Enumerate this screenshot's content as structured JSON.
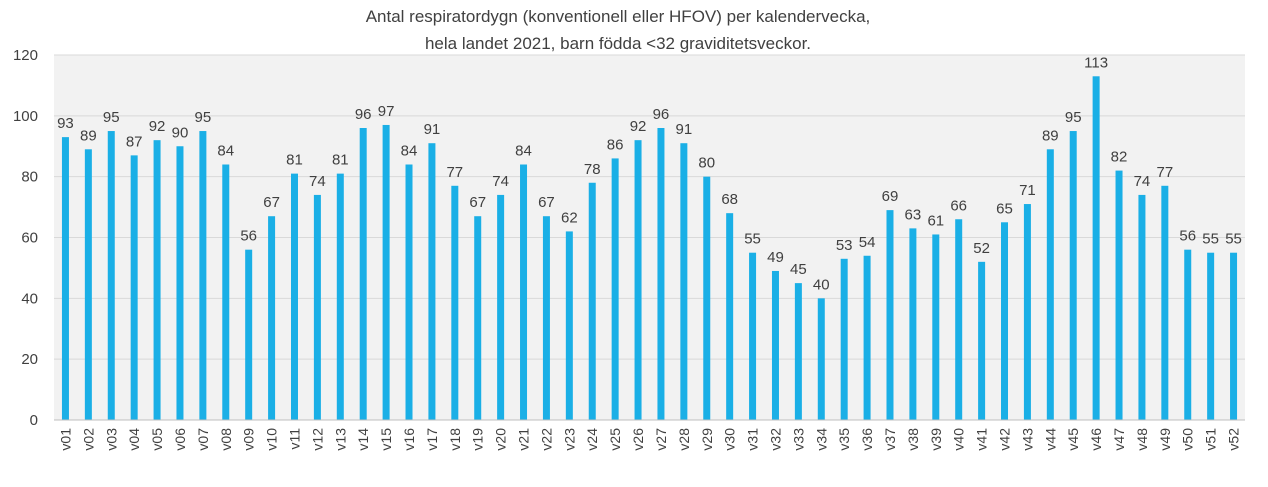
{
  "chart_data": {
    "type": "bar",
    "title_lines": [
      "Antal respiratordygn (konventionell eller HFOV) per kalendervecka,",
      "hela landet 2021, barn födda <32 graviditetsveckor."
    ],
    "categories": [
      "v01",
      "v02",
      "v03",
      "v04",
      "v05",
      "v06",
      "v07",
      "v08",
      "v09",
      "v10",
      "v11",
      "v12",
      "v13",
      "v14",
      "v15",
      "v16",
      "v17",
      "v18",
      "v19",
      "v20",
      "v21",
      "v22",
      "v23",
      "v24",
      "v25",
      "v26",
      "v27",
      "v28",
      "v29",
      "v30",
      "v31",
      "v32",
      "v33",
      "v34",
      "v35",
      "v36",
      "v37",
      "v38",
      "v39",
      "v40",
      "v41",
      "v42",
      "v43",
      "v44",
      "v45",
      "v46",
      "v47",
      "v48",
      "v49",
      "v50",
      "v51",
      "v52"
    ],
    "values": [
      93,
      89,
      95,
      87,
      92,
      90,
      95,
      84,
      56,
      67,
      81,
      74,
      81,
      96,
      97,
      84,
      91,
      77,
      67,
      74,
      84,
      67,
      62,
      78,
      86,
      92,
      96,
      91,
      80,
      68,
      55,
      49,
      45,
      40,
      53,
      54,
      69,
      63,
      61,
      66,
      52,
      65,
      71,
      89,
      95,
      113,
      82,
      74,
      77,
      56,
      55,
      55
    ],
    "yticks": [
      0,
      20,
      40,
      60,
      80,
      100,
      120
    ],
    "ylim": [
      0,
      120
    ],
    "grid": true,
    "bar_color": "#1AAFE6",
    "plot_bg": "#F2F2F2",
    "grid_color": "#D9D9D9"
  }
}
